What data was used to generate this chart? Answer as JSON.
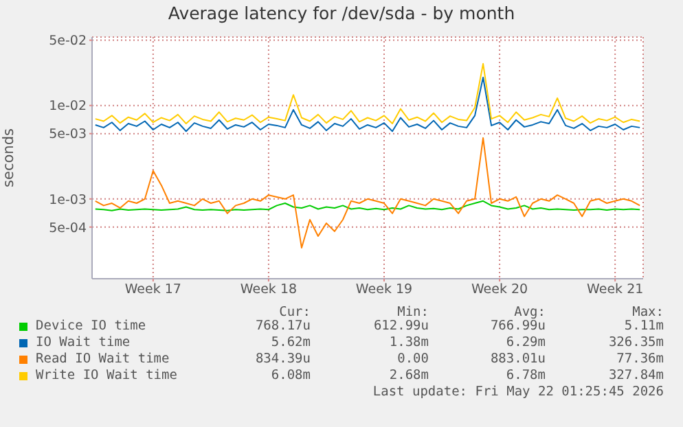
{
  "chart_data": {
    "type": "line",
    "title": "Average latency for /dev/sda - by month",
    "ylabel": "seconds",
    "log": "y",
    "grid": true,
    "legend": "bottom",
    "marker": "none",
    "line_style": "solid",
    "categories": [
      null,
      null,
      null,
      null,
      null,
      null,
      null,
      "Week 17",
      null,
      null,
      null,
      null,
      null,
      null,
      null,
      null,
      null,
      null,
      null,
      null,
      null,
      "Week 18",
      null,
      null,
      null,
      null,
      null,
      null,
      null,
      null,
      null,
      null,
      null,
      null,
      null,
      "Week 19",
      null,
      null,
      null,
      null,
      null,
      null,
      null,
      null,
      null,
      null,
      null,
      null,
      null,
      "Week 20",
      null,
      null,
      null,
      null,
      null,
      null,
      null,
      null,
      null,
      null,
      null,
      null,
      null,
      "Week 21",
      null,
      null,
      null
    ],
    "ylim": [
      0.00014,
      0.054
    ],
    "yticks": [
      {
        "value": 0.0005,
        "label": "5e-04"
      },
      {
        "value": 0.001,
        "label": "1e-03"
      },
      {
        "value": 0.005,
        "label": "5e-03"
      },
      {
        "value": 0.01,
        "label": "1e-02"
      },
      {
        "value": 0.05,
        "label": "5e-02"
      }
    ],
    "series": [
      {
        "name": "Device IO time",
        "color": "#00cc00",
        "values": [
          0.00078,
          0.00077,
          0.00075,
          0.00078,
          0.00076,
          0.00077,
          0.00078,
          0.00077,
          0.00076,
          0.00077,
          0.00078,
          0.00082,
          0.00077,
          0.00076,
          0.00077,
          0.00076,
          0.00075,
          0.00077,
          0.00076,
          0.00077,
          0.00078,
          0.00077,
          0.00085,
          0.0009,
          0.00082,
          0.0008,
          0.00085,
          0.00078,
          0.00082,
          0.0008,
          0.00085,
          0.00078,
          0.0008,
          0.00077,
          0.00079,
          0.00077,
          0.0008,
          0.00078,
          0.00085,
          0.0008,
          0.00078,
          0.00079,
          0.00077,
          0.0008,
          0.00078,
          0.00085,
          0.0009,
          0.00095,
          0.00085,
          0.00082,
          0.00078,
          0.0008,
          0.00085,
          0.00078,
          0.0008,
          0.00077,
          0.00078,
          0.00077,
          0.00076,
          0.00077,
          0.00077,
          0.00078,
          0.00076,
          0.00078,
          0.00077,
          0.00078,
          0.00077
        ]
      },
      {
        "name": "IO Wait time",
        "color": "#0066b3",
        "values": [
          0.0062,
          0.0058,
          0.0066,
          0.0054,
          0.0064,
          0.006,
          0.0068,
          0.0055,
          0.0063,
          0.0058,
          0.0066,
          0.0053,
          0.0065,
          0.006,
          0.0057,
          0.007,
          0.0056,
          0.0062,
          0.0059,
          0.0066,
          0.0055,
          0.0063,
          0.0061,
          0.0058,
          0.009,
          0.0062,
          0.0057,
          0.0067,
          0.0054,
          0.0064,
          0.006,
          0.0072,
          0.0056,
          0.0062,
          0.0058,
          0.0065,
          0.0053,
          0.0074,
          0.0059,
          0.0063,
          0.0057,
          0.0069,
          0.0055,
          0.0065,
          0.006,
          0.0058,
          0.0078,
          0.02,
          0.0061,
          0.0066,
          0.0055,
          0.007,
          0.0059,
          0.0062,
          0.0067,
          0.0064,
          0.009,
          0.0061,
          0.0057,
          0.0064,
          0.0054,
          0.006,
          0.0058,
          0.0063,
          0.0055,
          0.006,
          0.0058
        ]
      },
      {
        "name": "Read IO Wait time",
        "color": "#ff8000",
        "values": [
          0.00095,
          0.00085,
          0.0009,
          0.0008,
          0.00095,
          0.0009,
          0.001,
          0.002,
          0.0014,
          0.0009,
          0.00095,
          0.0009,
          0.00085,
          0.001,
          0.0009,
          0.00095,
          0.0007,
          0.00085,
          0.0009,
          0.001,
          0.00095,
          0.0011,
          0.00105,
          0.001,
          0.0011,
          0.0003,
          0.0006,
          0.0004,
          0.00055,
          0.00045,
          0.0006,
          0.00095,
          0.0009,
          0.001,
          0.00095,
          0.0009,
          0.0007,
          0.001,
          0.00095,
          0.0009,
          0.00085,
          0.001,
          0.00095,
          0.0009,
          0.0007,
          0.00095,
          0.001,
          0.0045,
          0.0009,
          0.001,
          0.00095,
          0.00105,
          0.00065,
          0.0009,
          0.001,
          0.00095,
          0.0011,
          0.001,
          0.0009,
          0.00065,
          0.00095,
          0.001,
          0.0009,
          0.00095,
          0.001,
          0.00095,
          0.00085
        ]
      },
      {
        "name": "Write IO Wait time",
        "color": "#ffcc00",
        "values": [
          0.0072,
          0.0068,
          0.0078,
          0.0065,
          0.0075,
          0.007,
          0.0082,
          0.0066,
          0.0074,
          0.0069,
          0.008,
          0.0064,
          0.0077,
          0.0071,
          0.0068,
          0.0085,
          0.0067,
          0.0073,
          0.007,
          0.0079,
          0.0066,
          0.0075,
          0.0072,
          0.0069,
          0.013,
          0.0074,
          0.0068,
          0.008,
          0.0065,
          0.0076,
          0.0071,
          0.0088,
          0.0067,
          0.0074,
          0.0069,
          0.0078,
          0.0064,
          0.0092,
          0.007,
          0.0075,
          0.0068,
          0.0083,
          0.0066,
          0.0077,
          0.0071,
          0.0069,
          0.0095,
          0.028,
          0.0072,
          0.0078,
          0.0066,
          0.0085,
          0.007,
          0.0074,
          0.008,
          0.0076,
          0.012,
          0.0073,
          0.0068,
          0.0077,
          0.0065,
          0.0072,
          0.0069,
          0.0075,
          0.0066,
          0.0071,
          0.0068
        ]
      }
    ],
    "annotations": [
      "Cur:",
      "Min:",
      "Avg:",
      "Max:",
      "768.17u",
      "612.99u",
      "766.99u",
      "5.11m",
      "5.62m",
      "1.38m",
      "6.29m",
      "326.35m",
      "834.39u",
      "0.00",
      "883.01u",
      "77.36m",
      "6.08m",
      "2.68m",
      "6.78m",
      "327.84m",
      "Last update: Fri May 22 01:25:45 2026"
    ]
  }
}
